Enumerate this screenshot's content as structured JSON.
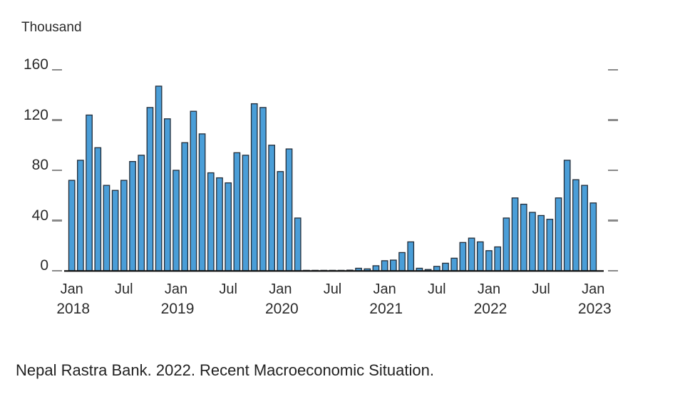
{
  "unit_label": "Thousand",
  "source": "Nepal Rastra Bank. 2022. Recent Macroeconomic Situation.",
  "colors": {
    "bar_fill": "#4A9ED8",
    "bar_stroke": "#222C38",
    "axis": "#111111",
    "tick_dash": "#8a8a8a",
    "text": "#2b2b2b"
  },
  "chart_data": {
    "type": "bar",
    "title": "",
    "xlabel": "",
    "ylabel": "Thousand",
    "ylim": [
      0,
      160
    ],
    "grid": false,
    "legend": "none",
    "yticks": [
      {
        "label": "0",
        "value": 0
      },
      {
        "label": "40",
        "value": 40
      },
      {
        "label": "80",
        "value": 80
      },
      {
        "label": "120",
        "value": 120
      },
      {
        "label": "160",
        "value": 160
      }
    ],
    "xticks": [
      {
        "month": "Jan",
        "year": "2018",
        "index": 0
      },
      {
        "month": "Jul",
        "year": "",
        "index": 6
      },
      {
        "month": "Jan",
        "year": "2019",
        "index": 12
      },
      {
        "month": "Jul",
        "year": "",
        "index": 18
      },
      {
        "month": "Jan",
        "year": "2020",
        "index": 24
      },
      {
        "month": "Jul",
        "year": "",
        "index": 30
      },
      {
        "month": "Jan",
        "year": "2021",
        "index": 36
      },
      {
        "month": "Jul",
        "year": "",
        "index": 42
      },
      {
        "month": "Jan",
        "year": "2022",
        "index": 48
      },
      {
        "month": "Jul",
        "year": "",
        "index": 54
      },
      {
        "month": "Jan",
        "year": "2023",
        "index": 60
      }
    ],
    "x": [
      "Jan 2018",
      "Feb 2018",
      "Mar 2018",
      "Apr 2018",
      "May 2018",
      "Jun 2018",
      "Jul 2018",
      "Aug 2018",
      "Sep 2018",
      "Oct 2018",
      "Nov 2018",
      "Dec 2018",
      "Jan 2019",
      "Feb 2019",
      "Mar 2019",
      "Apr 2019",
      "May 2019",
      "Jun 2019",
      "Jul 2019",
      "Aug 2019",
      "Sep 2019",
      "Oct 2019",
      "Nov 2019",
      "Dec 2019",
      "Jan 2020",
      "Feb 2020",
      "Mar 2020",
      "Apr 2020",
      "May 2020",
      "Jun 2020",
      "Jul 2020",
      "Aug 2020",
      "Sep 2020",
      "Oct 2020",
      "Nov 2020",
      "Dec 2020",
      "Jan 2021",
      "Feb 2021",
      "Mar 2021",
      "Apr 2021",
      "May 2021",
      "Jun 2021",
      "Jul 2021",
      "Aug 2021",
      "Sep 2021",
      "Oct 2021",
      "Nov 2021",
      "Dec 2021",
      "Jan 2022",
      "Feb 2022",
      "Mar 2022",
      "Apr 2022",
      "May 2022",
      "Jun 2022",
      "Jul 2022",
      "Aug 2022",
      "Sep 2022",
      "Oct 2022",
      "Nov 2022",
      "Dec 2022",
      "Jan 2023"
    ],
    "values": [
      72,
      88,
      124,
      98,
      68,
      64,
      72,
      87,
      92,
      130,
      147,
      121,
      80,
      102,
      127,
      109,
      78,
      74,
      70,
      94,
      92,
      133,
      130,
      100,
      79,
      97,
      42,
      0.2,
      0.2,
      0.2,
      0.2,
      0.2,
      0.5,
      2,
      1.5,
      4,
      8,
      8.5,
      14.5,
      23,
      2,
      1,
      3.5,
      6,
      10,
      22.5,
      26,
      23,
      16,
      19,
      42,
      58,
      53,
      46.5,
      44,
      41,
      58,
      88,
      72.5,
      68,
      54
    ]
  }
}
